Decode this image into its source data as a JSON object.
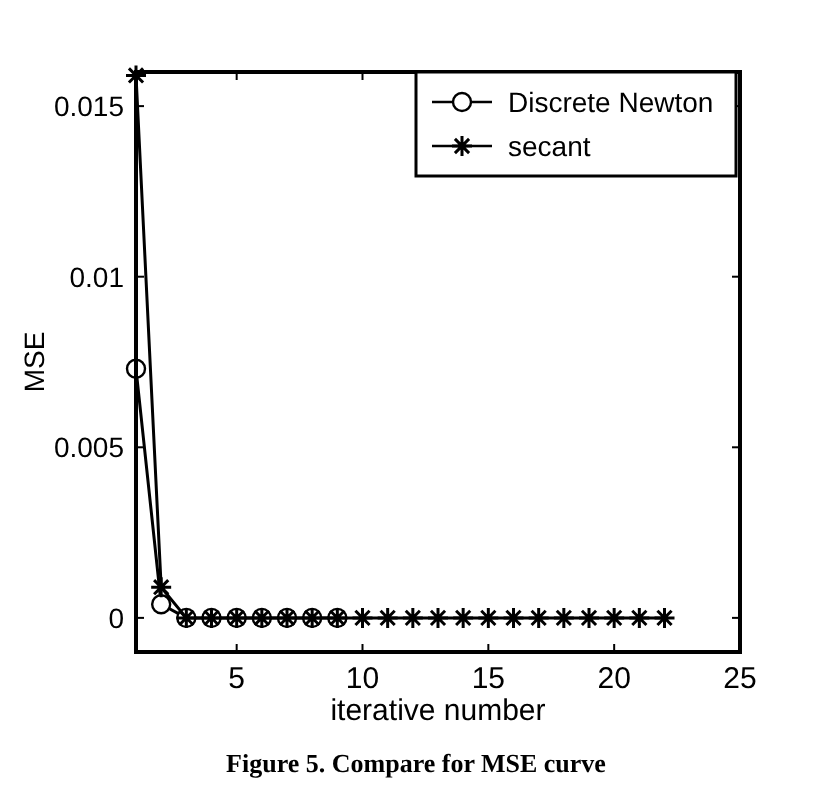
{
  "chart_data": {
    "type": "line",
    "xlabel": "iterative number",
    "ylabel": "MSE",
    "annotations": [
      "Figure 5. Compare for MSE curve"
    ],
    "xlim": [
      1,
      25
    ],
    "xticks": [
      5,
      10,
      15,
      20,
      25
    ],
    "ylim": [
      -0.001,
      0.016
    ],
    "yticks": [
      0,
      0.005,
      0.01,
      0.015
    ],
    "grid": false,
    "legend": "top right",
    "series": [
      {
        "name": "Discrete Newton",
        "color": "#000000",
        "marker": "circle",
        "x": [
          1,
          2,
          3,
          4,
          5,
          6,
          7,
          8,
          9
        ],
        "values": [
          0.0073,
          0.0004,
          0,
          0,
          0,
          0,
          0,
          0,
          0
        ]
      },
      {
        "name": "secant",
        "color": "#000000",
        "marker": "cross",
        "x": [
          1,
          2,
          3,
          4,
          5,
          6,
          7,
          8,
          9,
          10,
          11,
          12,
          13,
          14,
          15,
          16,
          17,
          18,
          19,
          20,
          21,
          22
        ],
        "values": [
          0.0159,
          0.0009,
          0,
          0,
          0,
          0,
          0,
          0,
          0,
          0,
          0,
          0,
          0,
          0,
          0,
          0,
          0,
          0,
          0,
          0,
          0,
          0
        ]
      }
    ]
  }
}
